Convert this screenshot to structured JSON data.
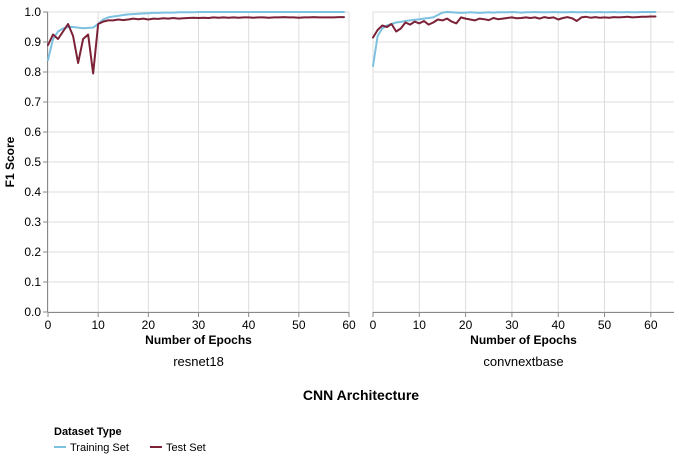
{
  "chart_data": {
    "type": "line",
    "ylabel": "F1 Score",
    "ylim": [
      0,
      1
    ],
    "yticks": [
      0.0,
      0.1,
      0.2,
      0.3,
      0.4,
      0.5,
      0.6,
      0.7,
      0.8,
      0.9,
      1.0
    ],
    "ytick_labels": [
      "0.0",
      "0.1",
      "0.2",
      "0.3",
      "0.4",
      "0.5",
      "0.6",
      "0.7",
      "0.8",
      "0.9",
      "1.0"
    ],
    "column_title": "CNN Architecture",
    "grid": true,
    "legend": {
      "title": "Dataset Type",
      "position": "bottom-left",
      "entries": [
        {
          "label": "Training Set",
          "color": "#7dc1e0"
        },
        {
          "label": "Test Set",
          "color": "#7b2237"
        }
      ]
    },
    "facets": [
      {
        "name": "resnet18",
        "xlabel": "Number of Epochs",
        "xlim": [
          0,
          60
        ],
        "xticks": [
          0,
          10,
          20,
          30,
          40,
          50,
          60
        ],
        "xtick_labels": [
          "0",
          "10",
          "20",
          "30",
          "40",
          "50",
          "60"
        ],
        "series": [
          {
            "name": "Training Set",
            "color": "#7dc1e0",
            "x": [
              0,
              1,
              2,
              3,
              4,
              5,
              6,
              7,
              8,
              9,
              10,
              11,
              12,
              13,
              14,
              15,
              16,
              17,
              18,
              19,
              20,
              21,
              22,
              23,
              24,
              25,
              26,
              27,
              28,
              29,
              30,
              31,
              32,
              33,
              34,
              35,
              36,
              37,
              38,
              39,
              40,
              41,
              42,
              43,
              44,
              45,
              46,
              47,
              48,
              49,
              50,
              51,
              52,
              53,
              54,
              55,
              56,
              57,
              58,
              59
            ],
            "y": [
              0.84,
              0.91,
              0.935,
              0.945,
              0.95,
              0.95,
              0.948,
              0.946,
              0.947,
              0.948,
              0.96,
              0.975,
              0.982,
              0.985,
              0.987,
              0.99,
              0.992,
              0.993,
              0.994,
              0.995,
              0.996,
              0.997,
              0.997,
              0.998,
              0.998,
              0.998,
              0.999,
              0.999,
              0.999,
              0.999,
              1.0,
              1.0,
              1.0,
              1.0,
              1.0,
              1.0,
              1.0,
              1.0,
              1.0,
              1.0,
              1.0,
              1.0,
              1.0,
              1.0,
              1.0,
              1.0,
              1.0,
              1.0,
              1.0,
              1.0,
              1.0,
              1.0,
              1.0,
              1.0,
              1.0,
              1.0,
              1.0,
              1.0,
              1.0,
              1.0
            ]
          },
          {
            "name": "Test Set",
            "color": "#7b2237",
            "x": [
              0,
              1,
              2,
              3,
              4,
              5,
              6,
              7,
              8,
              9,
              10,
              11,
              12,
              13,
              14,
              15,
              16,
              17,
              18,
              19,
              20,
              21,
              22,
              23,
              24,
              25,
              26,
              27,
              28,
              29,
              30,
              31,
              32,
              33,
              34,
              35,
              36,
              37,
              38,
              39,
              40,
              41,
              42,
              43,
              44,
              45,
              46,
              47,
              48,
              49,
              50,
              51,
              52,
              53,
              54,
              55,
              56,
              57,
              58,
              59
            ],
            "y": [
              0.89,
              0.925,
              0.91,
              0.935,
              0.96,
              0.92,
              0.83,
              0.91,
              0.925,
              0.795,
              0.96,
              0.968,
              0.972,
              0.972,
              0.975,
              0.973,
              0.975,
              0.978,
              0.976,
              0.978,
              0.975,
              0.978,
              0.977,
              0.979,
              0.978,
              0.98,
              0.978,
              0.979,
              0.98,
              0.981,
              0.98,
              0.981,
              0.98,
              0.982,
              0.981,
              0.982,
              0.981,
              0.982,
              0.981,
              0.982,
              0.982,
              0.981,
              0.982,
              0.982,
              0.981,
              0.982,
              0.982,
              0.983,
              0.982,
              0.982,
              0.981,
              0.982,
              0.982,
              0.983,
              0.982,
              0.982,
              0.982,
              0.982,
              0.983,
              0.983
            ]
          }
        ]
      },
      {
        "name": "convnextbase",
        "xlabel": "Number of Epochs",
        "xlim": [
          0,
          65
        ],
        "xticks": [
          0,
          10,
          20,
          30,
          40,
          50,
          60
        ],
        "xtick_labels": [
          "0",
          "10",
          "20",
          "30",
          "40",
          "50",
          "60"
        ],
        "series": [
          {
            "name": "Training Set",
            "color": "#7dc1e0",
            "x": [
              0,
              1,
              2,
              3,
              4,
              5,
              6,
              7,
              8,
              9,
              10,
              11,
              12,
              13,
              14,
              15,
              16,
              17,
              18,
              19,
              20,
              21,
              22,
              23,
              24,
              25,
              26,
              27,
              28,
              29,
              30,
              31,
              32,
              33,
              34,
              35,
              36,
              37,
              38,
              39,
              40,
              41,
              42,
              43,
              44,
              45,
              46,
              47,
              48,
              49,
              50,
              51,
              52,
              53,
              54,
              55,
              56,
              57,
              58,
              59,
              60,
              61
            ],
            "y": [
              0.82,
              0.92,
              0.945,
              0.955,
              0.96,
              0.965,
              0.967,
              0.97,
              0.972,
              0.974,
              0.976,
              0.978,
              0.98,
              0.982,
              0.99,
              0.998,
              1.0,
              0.999,
              0.998,
              0.997,
              0.998,
              0.999,
              0.998,
              0.997,
              0.998,
              0.999,
              0.998,
              0.999,
              0.999,
              0.999,
              1.0,
              0.999,
              0.998,
              0.999,
              0.999,
              1.0,
              0.999,
              0.999,
              0.999,
              1.0,
              0.999,
              0.999,
              0.999,
              1.0,
              0.999,
              0.999,
              1.0,
              0.999,
              0.999,
              1.0,
              0.999,
              0.999,
              1.0,
              0.999,
              0.999,
              1.0,
              0.999,
              0.999,
              1.0,
              1.0,
              1.0,
              1.0
            ]
          },
          {
            "name": "Test Set",
            "color": "#7b2237",
            "x": [
              0,
              1,
              2,
              3,
              4,
              5,
              6,
              7,
              8,
              9,
              10,
              11,
              12,
              13,
              14,
              15,
              16,
              17,
              18,
              19,
              20,
              21,
              22,
              23,
              24,
              25,
              26,
              27,
              28,
              29,
              30,
              31,
              32,
              33,
              34,
              35,
              36,
              37,
              38,
              39,
              40,
              41,
              42,
              43,
              44,
              45,
              46,
              47,
              48,
              49,
              50,
              51,
              52,
              53,
              54,
              55,
              56,
              57,
              58,
              59,
              60,
              61
            ],
            "y": [
              0.915,
              0.94,
              0.955,
              0.95,
              0.96,
              0.935,
              0.945,
              0.965,
              0.958,
              0.968,
              0.962,
              0.97,
              0.958,
              0.965,
              0.975,
              0.972,
              0.978,
              0.968,
              0.962,
              0.982,
              0.978,
              0.975,
              0.972,
              0.978,
              0.976,
              0.973,
              0.98,
              0.976,
              0.978,
              0.98,
              0.982,
              0.979,
              0.98,
              0.982,
              0.98,
              0.982,
              0.978,
              0.983,
              0.98,
              0.982,
              0.975,
              0.98,
              0.983,
              0.979,
              0.97,
              0.982,
              0.984,
              0.981,
              0.983,
              0.981,
              0.982,
              0.981,
              0.983,
              0.982,
              0.983,
              0.984,
              0.982,
              0.983,
              0.984,
              0.984,
              0.985,
              0.985
            ]
          }
        ]
      }
    ]
  }
}
